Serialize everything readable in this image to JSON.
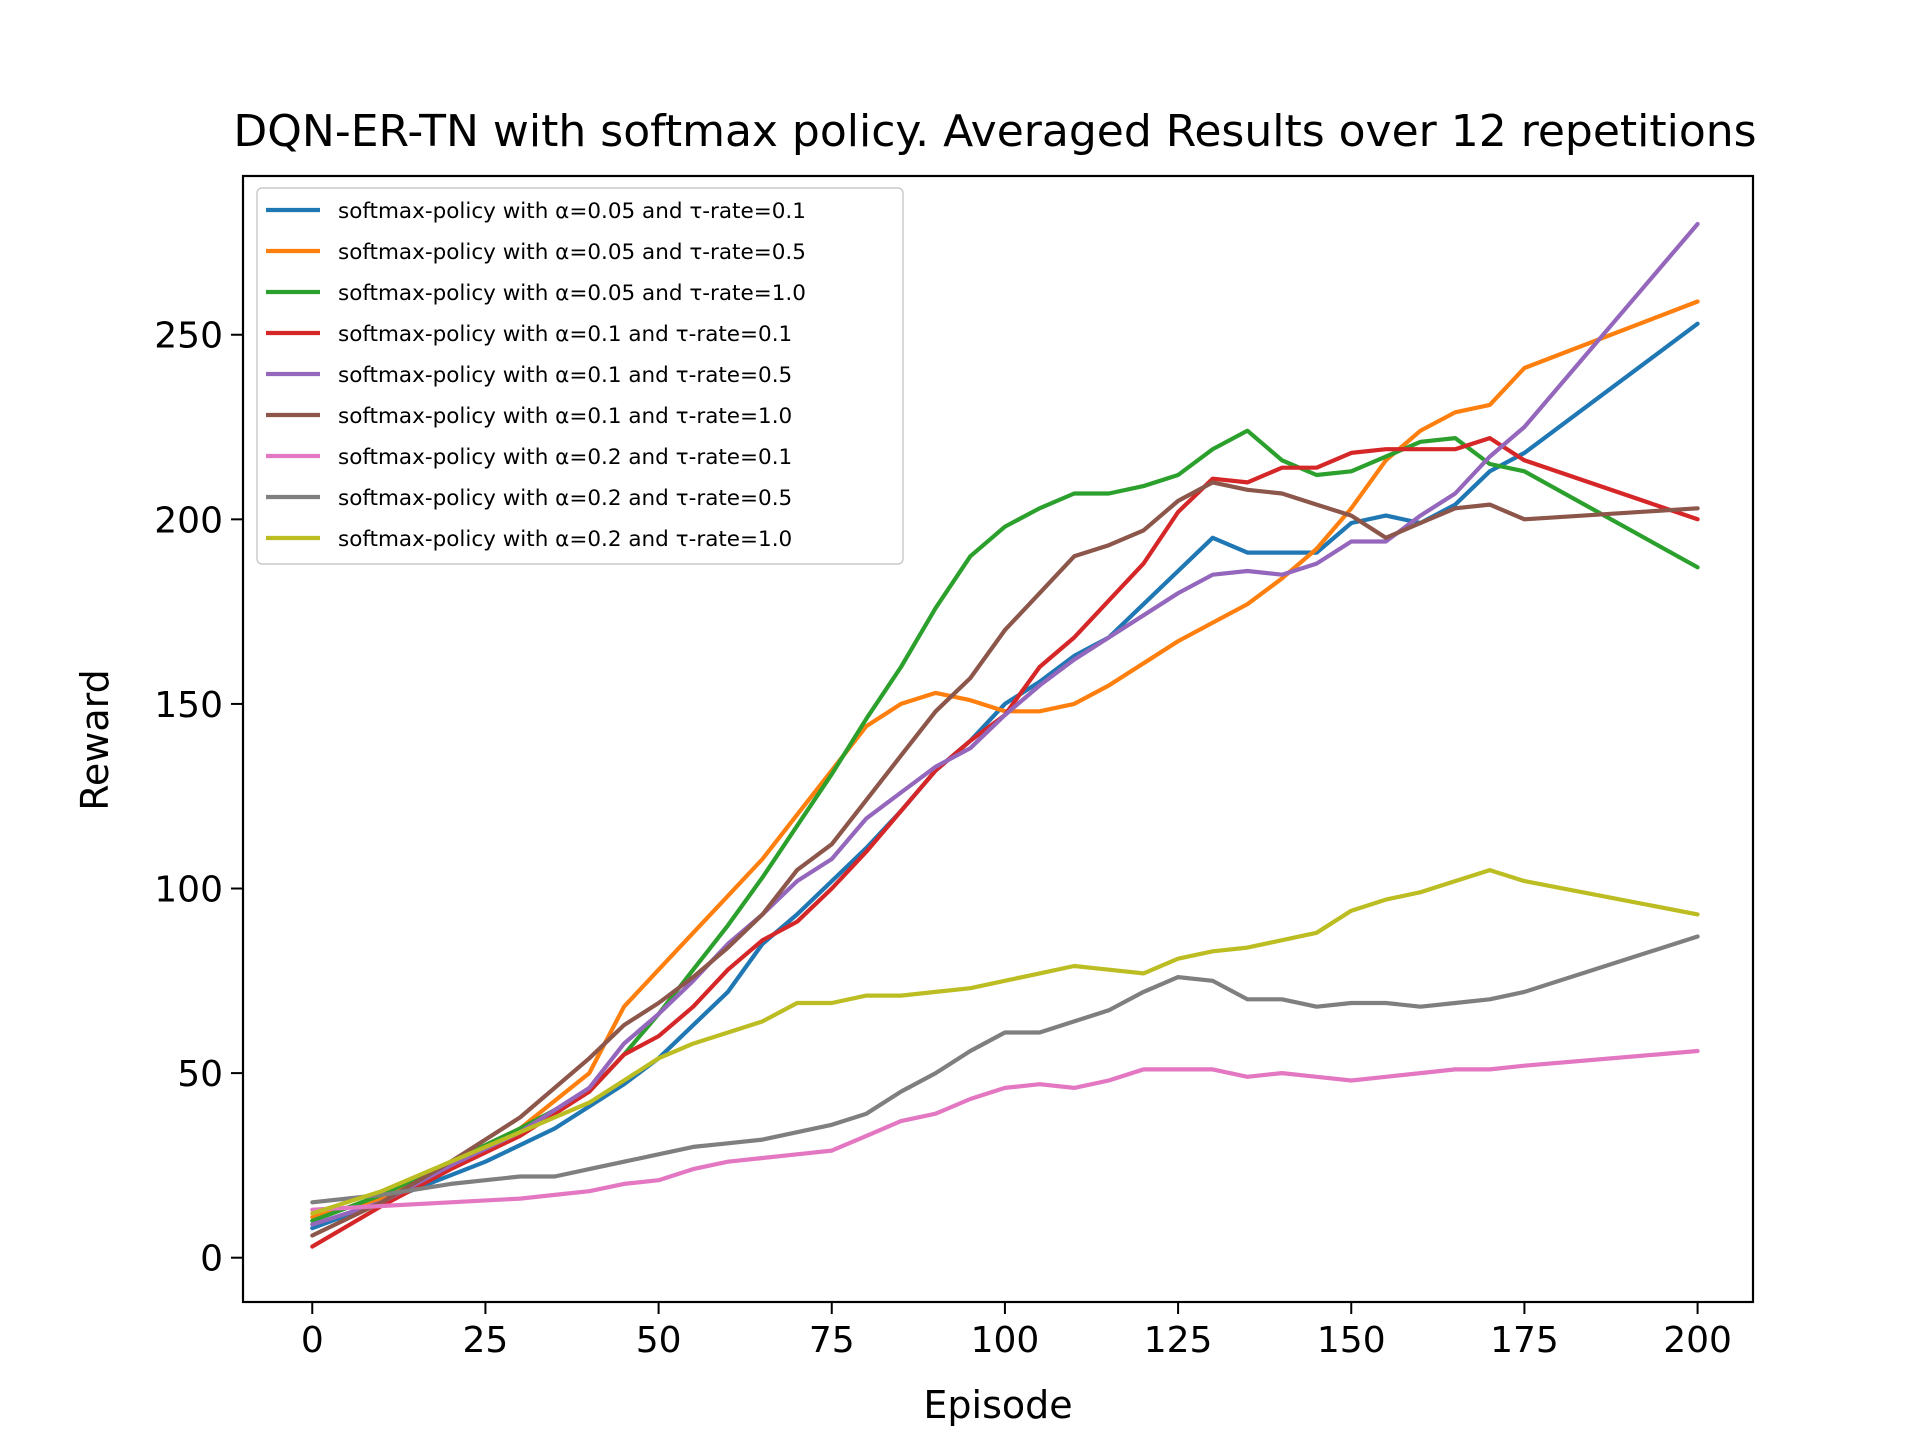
{
  "chart_data": {
    "type": "line",
    "title": "DQN-ER-TN with softmax policy. Averaged Results over 12 repetitions",
    "xlabel": "Episode",
    "ylabel": "Reward",
    "xlim": [
      -10,
      208
    ],
    "ylim": [
      -12,
      293
    ],
    "xticks": [
      0,
      25,
      50,
      75,
      100,
      125,
      150,
      175,
      200
    ],
    "yticks": [
      0,
      50,
      100,
      150,
      200,
      250
    ],
    "grid": false,
    "legend_position": "top-left",
    "series": [
      {
        "name": "softmax-policy with α=0.05 and τ-rate=0.1",
        "color": "#1f77b4",
        "points": [
          [
            0,
            8
          ],
          [
            10,
            15
          ],
          [
            25,
            26
          ],
          [
            35,
            35
          ],
          [
            45,
            47
          ],
          [
            50,
            54
          ],
          [
            55,
            63
          ],
          [
            60,
            72
          ],
          [
            65,
            85
          ],
          [
            70,
            93
          ],
          [
            75,
            102
          ],
          [
            80,
            111
          ],
          [
            85,
            121
          ],
          [
            90,
            132
          ],
          [
            95,
            140
          ],
          [
            100,
            150
          ],
          [
            105,
            156
          ],
          [
            110,
            163
          ],
          [
            115,
            168
          ],
          [
            120,
            177
          ],
          [
            125,
            186
          ],
          [
            130,
            195
          ],
          [
            135,
            191
          ],
          [
            140,
            191
          ],
          [
            145,
            191
          ],
          [
            150,
            199
          ],
          [
            155,
            201
          ],
          [
            160,
            199
          ],
          [
            165,
            204
          ],
          [
            170,
            213
          ],
          [
            175,
            218
          ],
          [
            200,
            253
          ]
        ]
      },
      {
        "name": "softmax-policy with α=0.05 and τ-rate=0.5",
        "color": "#ff7f0e",
        "points": [
          [
            0,
            11
          ],
          [
            10,
            16
          ],
          [
            20,
            26
          ],
          [
            30,
            35
          ],
          [
            40,
            50
          ],
          [
            45,
            68
          ],
          [
            50,
            78
          ],
          [
            55,
            88
          ],
          [
            60,
            98
          ],
          [
            65,
            108
          ],
          [
            70,
            120
          ],
          [
            75,
            132
          ],
          [
            80,
            144
          ],
          [
            85,
            150
          ],
          [
            90,
            153
          ],
          [
            95,
            151
          ],
          [
            100,
            148
          ],
          [
            105,
            148
          ],
          [
            110,
            150
          ],
          [
            115,
            155
          ],
          [
            120,
            161
          ],
          [
            125,
            167
          ],
          [
            130,
            172
          ],
          [
            135,
            177
          ],
          [
            140,
            184
          ],
          [
            145,
            192
          ],
          [
            150,
            203
          ],
          [
            155,
            216
          ],
          [
            160,
            224
          ],
          [
            165,
            229
          ],
          [
            170,
            231
          ],
          [
            175,
            241
          ],
          [
            200,
            259
          ]
        ]
      },
      {
        "name": "softmax-policy with α=0.05 and τ-rate=1.0",
        "color": "#2ca02c",
        "points": [
          [
            0,
            10
          ],
          [
            10,
            17
          ],
          [
            20,
            26
          ],
          [
            30,
            35
          ],
          [
            40,
            45
          ],
          [
            45,
            55
          ],
          [
            50,
            66
          ],
          [
            55,
            78
          ],
          [
            60,
            90
          ],
          [
            65,
            103
          ],
          [
            70,
            117
          ],
          [
            75,
            131
          ],
          [
            80,
            146
          ],
          [
            85,
            160
          ],
          [
            90,
            176
          ],
          [
            95,
            190
          ],
          [
            100,
            198
          ],
          [
            105,
            203
          ],
          [
            110,
            207
          ],
          [
            115,
            207
          ],
          [
            120,
            209
          ],
          [
            125,
            212
          ],
          [
            130,
            219
          ],
          [
            135,
            224
          ],
          [
            140,
            216
          ],
          [
            145,
            212
          ],
          [
            150,
            213
          ],
          [
            155,
            217
          ],
          [
            160,
            221
          ],
          [
            165,
            222
          ],
          [
            170,
            215
          ],
          [
            175,
            213
          ],
          [
            200,
            187
          ]
        ]
      },
      {
        "name": "softmax-policy with α=0.1 and τ-rate=0.1",
        "color": "#d62728",
        "points": [
          [
            0,
            3
          ],
          [
            10,
            14
          ],
          [
            20,
            24
          ],
          [
            30,
            33
          ],
          [
            40,
            45
          ],
          [
            45,
            55
          ],
          [
            50,
            60
          ],
          [
            55,
            68
          ],
          [
            60,
            78
          ],
          [
            65,
            86
          ],
          [
            70,
            91
          ],
          [
            75,
            100
          ],
          [
            80,
            110
          ],
          [
            85,
            121
          ],
          [
            90,
            132
          ],
          [
            95,
            140
          ],
          [
            100,
            147
          ],
          [
            105,
            160
          ],
          [
            110,
            168
          ],
          [
            115,
            178
          ],
          [
            120,
            188
          ],
          [
            125,
            202
          ],
          [
            130,
            211
          ],
          [
            135,
            210
          ],
          [
            140,
            214
          ],
          [
            145,
            214
          ],
          [
            150,
            218
          ],
          [
            155,
            219
          ],
          [
            160,
            219
          ],
          [
            165,
            219
          ],
          [
            170,
            222
          ],
          [
            175,
            216
          ],
          [
            200,
            200
          ]
        ]
      },
      {
        "name": "softmax-policy with α=0.1 and τ-rate=0.5",
        "color": "#9467bd",
        "points": [
          [
            0,
            9
          ],
          [
            10,
            15
          ],
          [
            20,
            25
          ],
          [
            30,
            34
          ],
          [
            40,
            46
          ],
          [
            45,
            58
          ],
          [
            50,
            66
          ],
          [
            55,
            75
          ],
          [
            60,
            85
          ],
          [
            65,
            93
          ],
          [
            70,
            102
          ],
          [
            75,
            108
          ],
          [
            80,
            119
          ],
          [
            85,
            126
          ],
          [
            90,
            133
          ],
          [
            95,
            138
          ],
          [
            100,
            147
          ],
          [
            105,
            155
          ],
          [
            110,
            162
          ],
          [
            115,
            168
          ],
          [
            120,
            174
          ],
          [
            125,
            180
          ],
          [
            130,
            185
          ],
          [
            135,
            186
          ],
          [
            140,
            185
          ],
          [
            145,
            188
          ],
          [
            150,
            194
          ],
          [
            155,
            194
          ],
          [
            160,
            201
          ],
          [
            165,
            207
          ],
          [
            170,
            217
          ],
          [
            175,
            225
          ],
          [
            200,
            280
          ]
        ]
      },
      {
        "name": "softmax-policy with α=0.1 and τ-rate=1.0",
        "color": "#8c564b",
        "points": [
          [
            0,
            6
          ],
          [
            10,
            15
          ],
          [
            20,
            26
          ],
          [
            30,
            38
          ],
          [
            40,
            54
          ],
          [
            45,
            63
          ],
          [
            50,
            69
          ],
          [
            55,
            76
          ],
          [
            60,
            84
          ],
          [
            65,
            93
          ],
          [
            70,
            105
          ],
          [
            75,
            112
          ],
          [
            80,
            124
          ],
          [
            85,
            136
          ],
          [
            90,
            148
          ],
          [
            95,
            157
          ],
          [
            100,
            170
          ],
          [
            105,
            180
          ],
          [
            110,
            190
          ],
          [
            115,
            193
          ],
          [
            120,
            197
          ],
          [
            125,
            205
          ],
          [
            130,
            210
          ],
          [
            135,
            208
          ],
          [
            140,
            207
          ],
          [
            145,
            204
          ],
          [
            150,
            201
          ],
          [
            155,
            195
          ],
          [
            160,
            199
          ],
          [
            165,
            203
          ],
          [
            170,
            204
          ],
          [
            175,
            200
          ],
          [
            200,
            203
          ]
        ]
      },
      {
        "name": "softmax-policy with α=0.2 and τ-rate=0.1",
        "color": "#e377c2",
        "points": [
          [
            0,
            13
          ],
          [
            10,
            14
          ],
          [
            20,
            15
          ],
          [
            30,
            16
          ],
          [
            35,
            17
          ],
          [
            40,
            18
          ],
          [
            45,
            20
          ],
          [
            50,
            21
          ],
          [
            55,
            24
          ],
          [
            60,
            26
          ],
          [
            65,
            27
          ],
          [
            70,
            28
          ],
          [
            75,
            29
          ],
          [
            80,
            33
          ],
          [
            85,
            37
          ],
          [
            90,
            39
          ],
          [
            95,
            43
          ],
          [
            100,
            46
          ],
          [
            105,
            47
          ],
          [
            110,
            46
          ],
          [
            115,
            48
          ],
          [
            120,
            51
          ],
          [
            125,
            51
          ],
          [
            130,
            51
          ],
          [
            135,
            49
          ],
          [
            140,
            50
          ],
          [
            145,
            49
          ],
          [
            150,
            48
          ],
          [
            155,
            49
          ],
          [
            160,
            50
          ],
          [
            165,
            51
          ],
          [
            170,
            51
          ],
          [
            175,
            52
          ],
          [
            200,
            56
          ]
        ]
      },
      {
        "name": "softmax-policy with α=0.2 and τ-rate=0.5",
        "color": "#7f7f7f",
        "points": [
          [
            0,
            15
          ],
          [
            10,
            17
          ],
          [
            20,
            20
          ],
          [
            25,
            21
          ],
          [
            30,
            22
          ],
          [
            35,
            22
          ],
          [
            40,
            24
          ],
          [
            45,
            26
          ],
          [
            50,
            28
          ],
          [
            55,
            30
          ],
          [
            60,
            31
          ],
          [
            65,
            32
          ],
          [
            70,
            34
          ],
          [
            75,
            36
          ],
          [
            80,
            39
          ],
          [
            85,
            45
          ],
          [
            90,
            50
          ],
          [
            95,
            56
          ],
          [
            100,
            61
          ],
          [
            105,
            61
          ],
          [
            110,
            64
          ],
          [
            115,
            67
          ],
          [
            120,
            72
          ],
          [
            125,
            76
          ],
          [
            130,
            75
          ],
          [
            135,
            70
          ],
          [
            140,
            70
          ],
          [
            145,
            68
          ],
          [
            150,
            69
          ],
          [
            155,
            69
          ],
          [
            160,
            68
          ],
          [
            165,
            69
          ],
          [
            170,
            70
          ],
          [
            175,
            72
          ],
          [
            200,
            87
          ]
        ]
      },
      {
        "name": "softmax-policy with α=0.2 and τ-rate=1.0",
        "color": "#bcbd22",
        "points": [
          [
            0,
            12
          ],
          [
            10,
            18
          ],
          [
            20,
            26
          ],
          [
            30,
            34
          ],
          [
            40,
            42
          ],
          [
            45,
            48
          ],
          [
            50,
            54
          ],
          [
            55,
            58
          ],
          [
            60,
            61
          ],
          [
            65,
            64
          ],
          [
            70,
            69
          ],
          [
            75,
            69
          ],
          [
            80,
            71
          ],
          [
            85,
            71
          ],
          [
            90,
            72
          ],
          [
            95,
            73
          ],
          [
            100,
            75
          ],
          [
            105,
            77
          ],
          [
            110,
            79
          ],
          [
            115,
            78
          ],
          [
            120,
            77
          ],
          [
            125,
            81
          ],
          [
            130,
            83
          ],
          [
            135,
            84
          ],
          [
            140,
            86
          ],
          [
            145,
            88
          ],
          [
            150,
            94
          ],
          [
            155,
            97
          ],
          [
            160,
            99
          ],
          [
            165,
            102
          ],
          [
            170,
            105
          ],
          [
            175,
            102
          ],
          [
            200,
            93
          ]
        ]
      }
    ]
  }
}
